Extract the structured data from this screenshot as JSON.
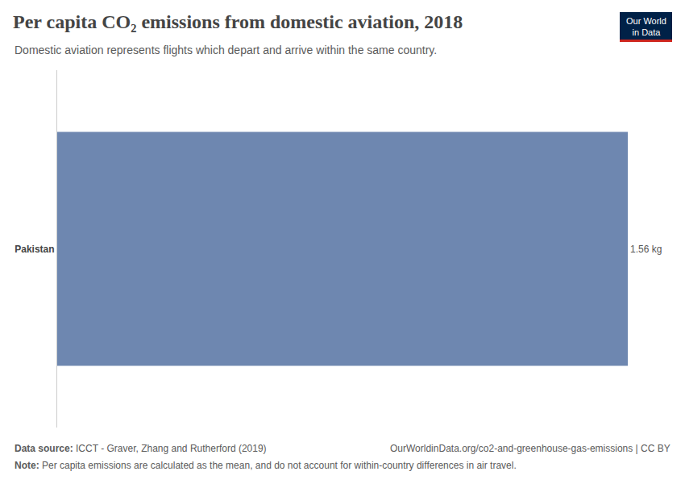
{
  "chart_data": {
    "type": "bar",
    "orientation": "horizontal",
    "title": "Per capita CO₂ emissions from domestic aviation, 2018",
    "subtitle": "Domestic aviation represents flights which depart and arrive within the same country.",
    "categories": [
      "Pakistan"
    ],
    "values": [
      1.56
    ],
    "value_labels": [
      "1.56 kg"
    ],
    "data_labels": true,
    "color": "#6e87b0",
    "xlim": [
      0,
      1.56
    ],
    "tick_labels": "y",
    "grid": false,
    "source_label": "Data source:",
    "source": "ICCT - Graver, Zhang and Rutherford (2019)",
    "url": "OurWorldinData.org/co2-and-greenhouse-gas-emissions | CC BY",
    "note_label": "Note:",
    "note": "Per capita emissions are calculated as the mean, and do not account for within-country differences in air travel.",
    "logo": [
      "Our World",
      "in Data"
    ]
  }
}
